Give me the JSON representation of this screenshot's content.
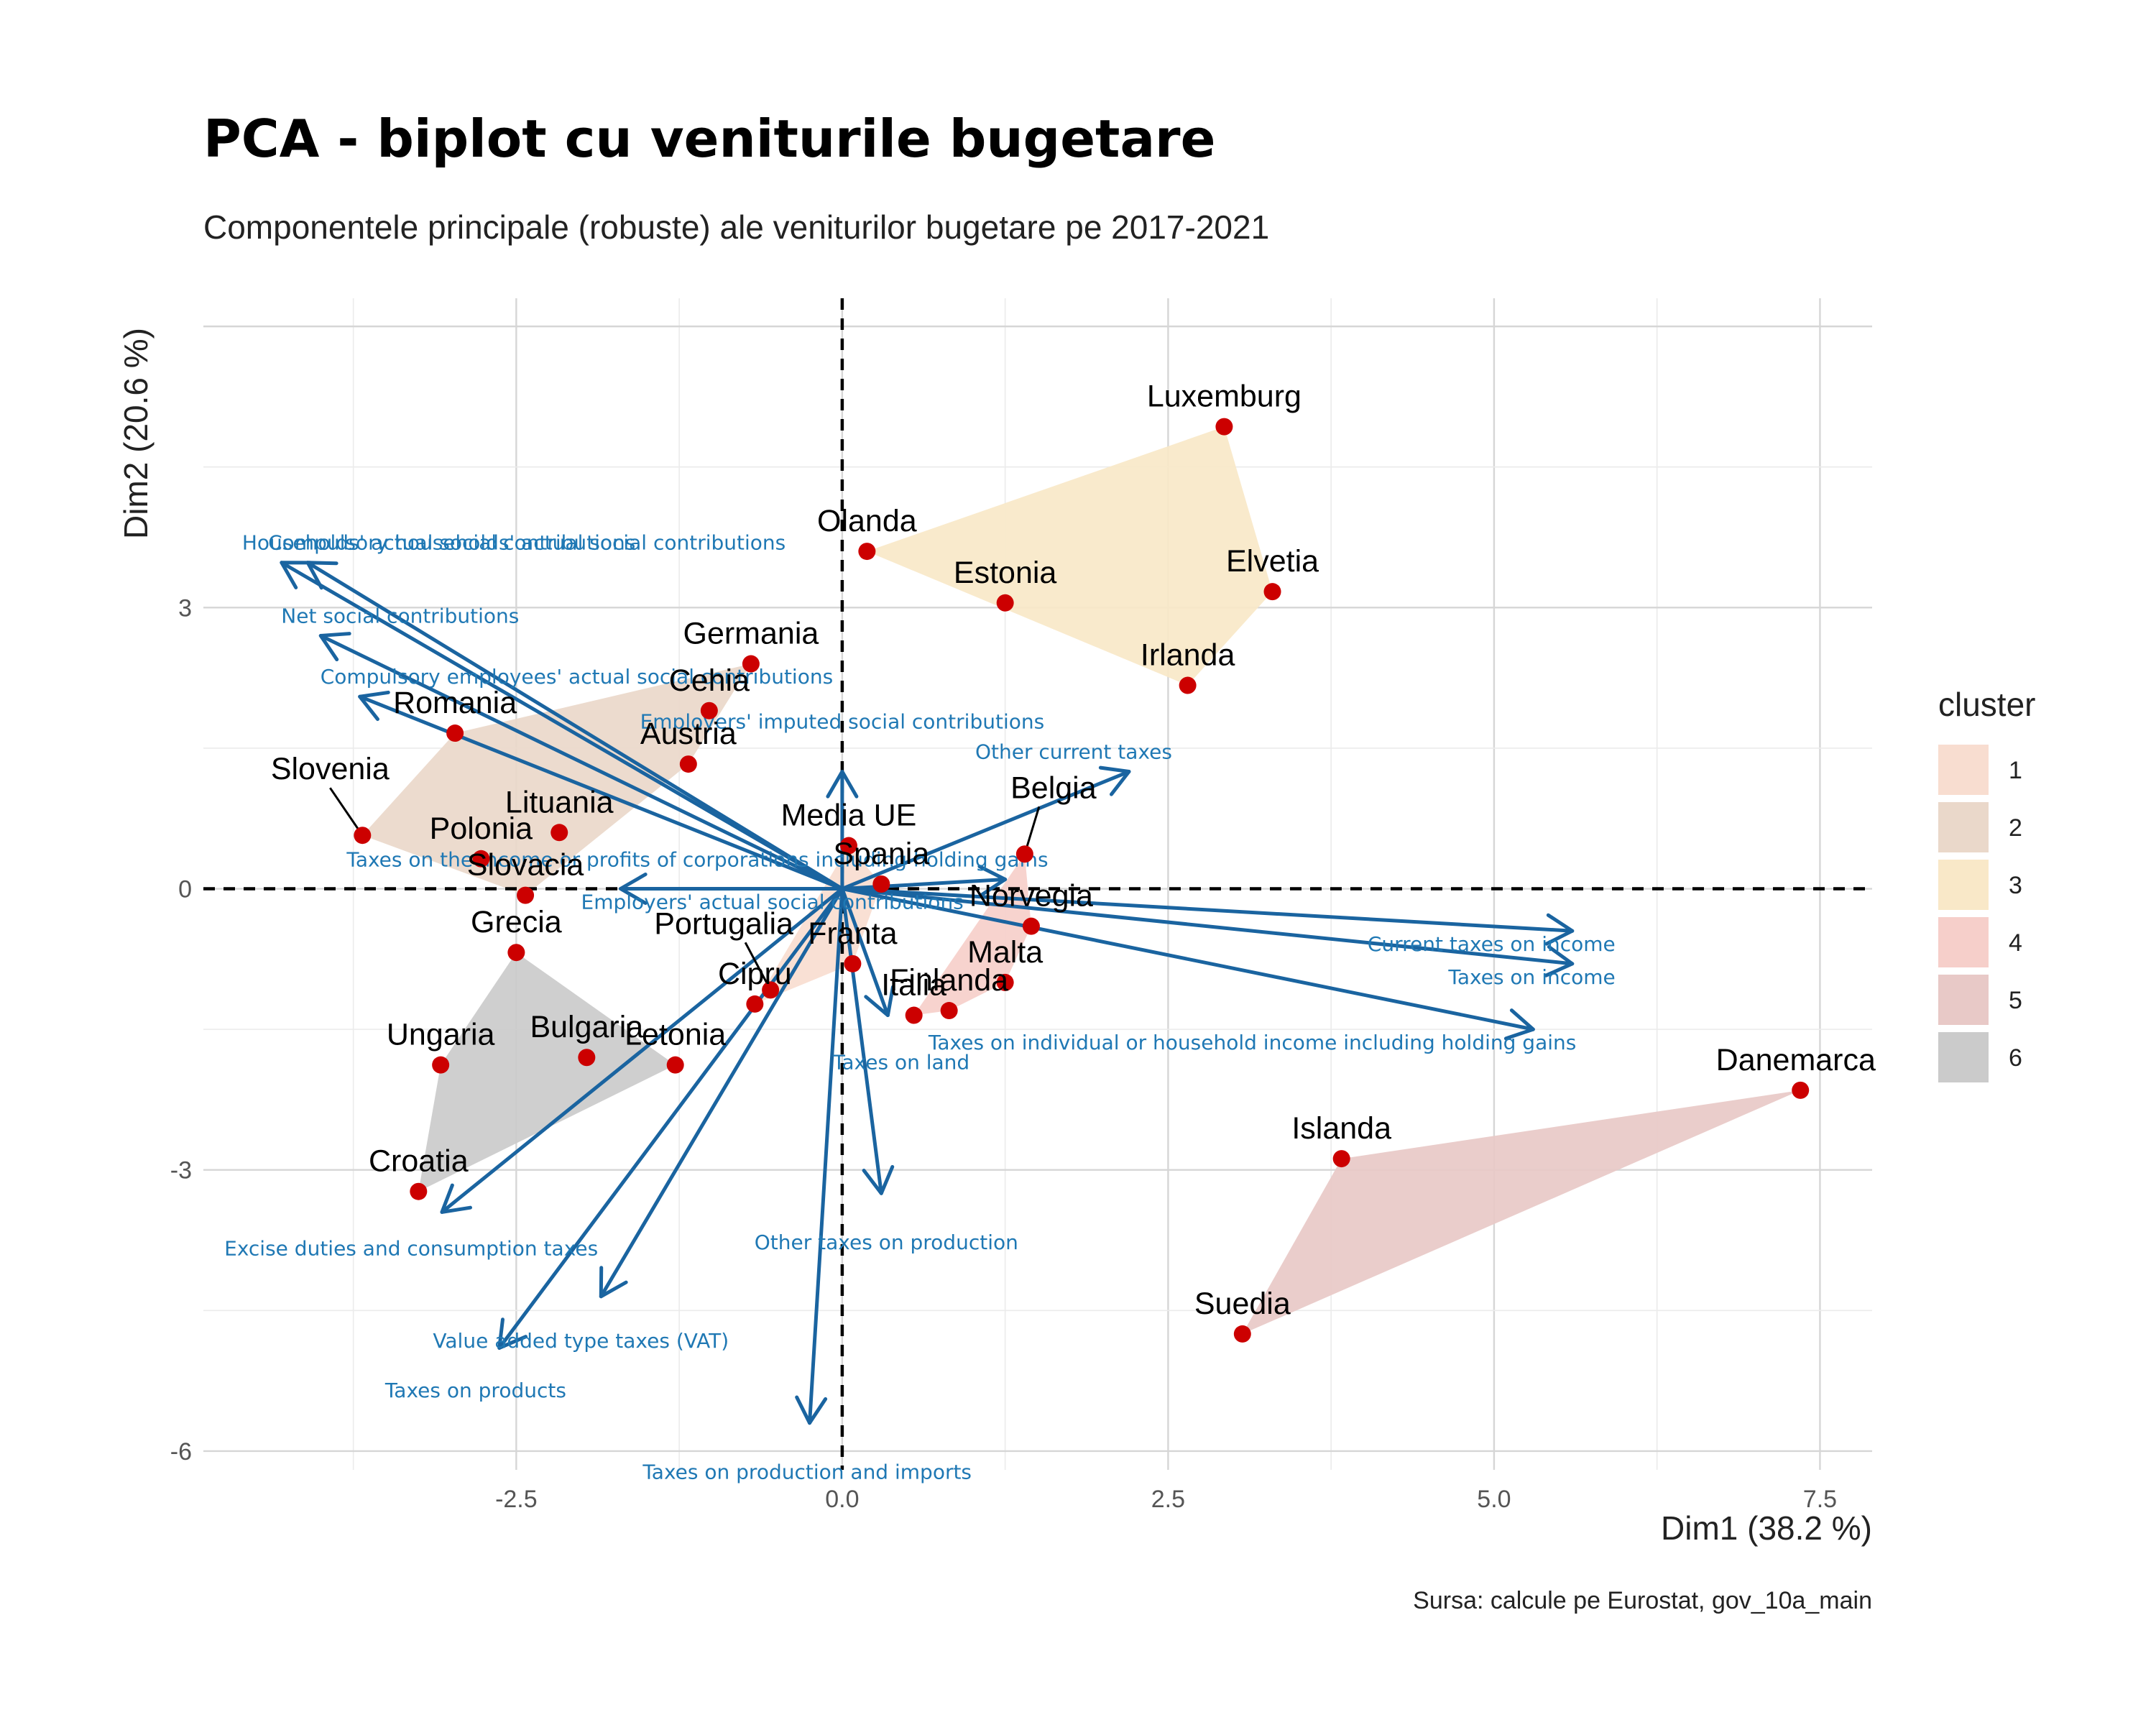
{
  "chart_data": {
    "type": "scatter",
    "title": "PCA - biplot cu veniturile bugetare",
    "subtitle": "Componentele principale (robuste) ale veniturilor bugetare pe 2017-2021",
    "xlabel": "Dim1 (38.2 %)",
    "ylabel": "Dim2 (20.6 %)",
    "caption": "Sursa: calcule pe Eurostat, gov_10a_main",
    "xlim": [
      -4.9,
      7.9
    ],
    "ylim": [
      -6.2,
      6.3
    ],
    "x_ticks": [
      -2.5,
      0.0,
      2.5,
      5.0,
      7.5
    ],
    "x_tick_labels": [
      "-2.5",
      "0.0",
      "2.5",
      "5.0",
      "7.5"
    ],
    "y_ticks": [
      -6,
      -3,
      0,
      3
    ],
    "y_tick_labels": [
      "-6",
      "-3",
      "0",
      "3"
    ],
    "grid": true,
    "reference_lines": [
      {
        "axis": "x",
        "value": 0
      },
      {
        "axis": "y",
        "value": 0
      }
    ],
    "legend": {
      "title": "cluster",
      "position": "right",
      "entries": [
        {
          "label": "1",
          "color": "#f8ddd0"
        },
        {
          "label": "2",
          "color": "#ead8ca"
        },
        {
          "label": "3",
          "color": "#f9e8c8"
        },
        {
          "label": "4",
          "color": "#f6cfca"
        },
        {
          "label": "5",
          "color": "#e8c9c7"
        },
        {
          "label": "6",
          "color": "#cbcbcb"
        }
      ]
    },
    "point_color": "#cc0000",
    "arrow_color": "#1a64a0",
    "clusters": [
      {
        "cluster": "1",
        "members": [
          "Media UE",
          "Spania",
          "Franta",
          "Portugalia",
          "Cipru"
        ]
      },
      {
        "cluster": "2",
        "members": [
          "Romania",
          "Germania",
          "Cehia",
          "Austria",
          "Slovenia",
          "Polonia",
          "Lituania",
          "Slovacia"
        ]
      },
      {
        "cluster": "3",
        "members": [
          "Olanda",
          "Luxemburg",
          "Elvetia",
          "Irlanda",
          "Estonia"
        ]
      },
      {
        "cluster": "4",
        "members": [
          "Belgia",
          "Norvegia",
          "Malta",
          "Finlanda",
          "Italia"
        ]
      },
      {
        "cluster": "5",
        "members": [
          "Danemarca",
          "Islanda",
          "Suedia"
        ]
      },
      {
        "cluster": "6",
        "members": [
          "Grecia",
          "Ungaria",
          "Bulgaria",
          "Letonia",
          "Croatia"
        ]
      }
    ],
    "points": [
      {
        "label": "Luxemburg",
        "x": 2.93,
        "y": 4.93
      },
      {
        "label": "Olanda",
        "x": 0.19,
        "y": 3.6
      },
      {
        "label": "Estonia",
        "x": 1.25,
        "y": 3.05
      },
      {
        "label": "Elvetia",
        "x": 3.3,
        "y": 3.17
      },
      {
        "label": "Irlanda",
        "x": 2.65,
        "y": 2.17
      },
      {
        "label": "Germania",
        "x": -0.7,
        "y": 2.4
      },
      {
        "label": "Cehia",
        "x": -1.02,
        "y": 1.9
      },
      {
        "label": "Romania",
        "x": -2.97,
        "y": 1.66
      },
      {
        "label": "Austria",
        "x": -1.18,
        "y": 1.33
      },
      {
        "label": "Slovenia",
        "x": -3.68,
        "y": 0.57
      },
      {
        "label": "Lituania",
        "x": -2.17,
        "y": 0.6
      },
      {
        "label": "Polonia",
        "x": -2.77,
        "y": 0.32
      },
      {
        "label": "Slovacia",
        "x": -2.43,
        "y": -0.07
      },
      {
        "label": "Media UE",
        "x": 0.05,
        "y": 0.46
      },
      {
        "label": "Belgia",
        "x": 1.4,
        "y": 0.37
      },
      {
        "label": "Spania",
        "x": 0.3,
        "y": 0.05
      },
      {
        "label": "Norvegia",
        "x": 1.45,
        "y": -0.4
      },
      {
        "label": "Franta",
        "x": 0.08,
        "y": -0.8
      },
      {
        "label": "Portugalia",
        "x": -0.55,
        "y": -1.08
      },
      {
        "label": "Cipru",
        "x": -0.67,
        "y": -1.23
      },
      {
        "label": "Malta",
        "x": 1.25,
        "y": -1.0
      },
      {
        "label": "Finlanda",
        "x": 0.82,
        "y": -1.3
      },
      {
        "label": "Italia",
        "x": 0.55,
        "y": -1.35
      },
      {
        "label": "Grecia",
        "x": -2.5,
        "y": -0.68
      },
      {
        "label": "Ungaria",
        "x": -3.08,
        "y": -1.88
      },
      {
        "label": "Bulgaria",
        "x": -1.96,
        "y": -1.8
      },
      {
        "label": "Letonia",
        "x": -1.28,
        "y": -1.88
      },
      {
        "label": "Croatia",
        "x": -3.25,
        "y": -3.23
      },
      {
        "label": "Danemarca",
        "x": 7.35,
        "y": -2.15
      },
      {
        "label": "Islanda",
        "x": 3.83,
        "y": -2.88
      },
      {
        "label": "Suedia",
        "x": 3.07,
        "y": -4.75
      }
    ],
    "vectors": [
      {
        "label": "Households' actual social contributions",
        "x": -4.3,
        "y": 3.48
      },
      {
        "label": "Compulsory households' actual social contributions",
        "x": -4.1,
        "y": 3.48
      },
      {
        "label": "Net social contributions",
        "x": -4.0,
        "y": 2.7
      },
      {
        "label": "Compulsory employees' actual social contributions",
        "x": -3.7,
        "y": 2.05
      },
      {
        "label": "Employers' imputed social contributions",
        "x": 0.0,
        "y": 1.25
      },
      {
        "label": "Other current taxes",
        "x": 2.2,
        "y": 1.25
      },
      {
        "label": "Taxes on the income or profits of corporations including holding gains",
        "x": 1.25,
        "y": 0.1
      },
      {
        "label": "Employers' actual social contributions",
        "x": -1.7,
        "y": 0.0
      },
      {
        "label": "Current taxes on income",
        "x": 5.6,
        "y": -0.45
      },
      {
        "label": "Taxes on income",
        "x": 5.6,
        "y": -0.8
      },
      {
        "label": "Taxes on individual or household income including holding gains",
        "x": 5.3,
        "y": -1.5
      },
      {
        "label": "Taxes on land",
        "x": 0.35,
        "y": -1.35
      },
      {
        "label": "Other taxes on production",
        "x": 0.3,
        "y": -3.25
      },
      {
        "label": "Excise duties and consumption taxes",
        "x": -3.07,
        "y": -3.45
      },
      {
        "label": "Value added type taxes (VAT)",
        "x": -1.85,
        "y": -4.35
      },
      {
        "label": "Taxes on products",
        "x": -2.63,
        "y": -4.9
      },
      {
        "label": "Taxes on production and imports",
        "x": -0.25,
        "y": -5.7
      }
    ]
  }
}
